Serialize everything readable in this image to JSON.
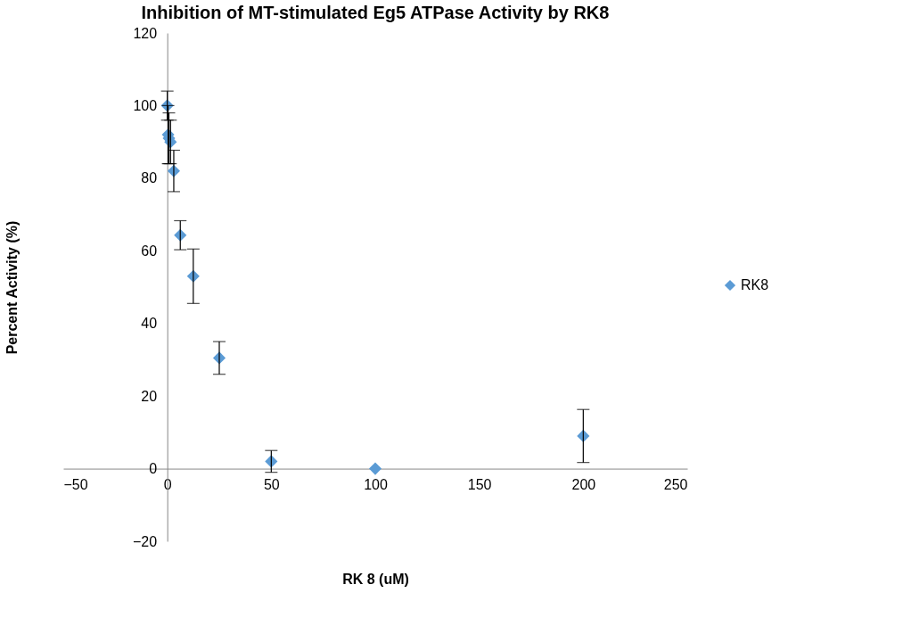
{
  "chart_data": {
    "type": "scatter",
    "title": "Inhibition of MT-stimulated Eg5 ATPase Activity by RK8",
    "xlabel": "RK 8 (uM)",
    "ylabel": "Percent Activity (%)",
    "x": [
      0,
      0.39,
      0.78,
      1.56,
      3.125,
      6.25,
      12.5,
      25,
      50,
      100,
      200
    ],
    "series": [
      {
        "name": "RK8",
        "color": "#5b9bd5",
        "values": [
          100,
          92,
          91,
          90,
          82,
          64.3,
          53,
          30.5,
          2,
          0,
          9
        ],
        "errors": [
          4,
          8,
          7,
          6,
          5.7,
          4,
          7.5,
          4.5,
          3,
          null,
          7.3
        ]
      }
    ],
    "xlim": [
      -50,
      250
    ],
    "xticks": [
      -50,
      0,
      50,
      100,
      150,
      200,
      250
    ],
    "ylim": [
      -20,
      120
    ],
    "yticks": [
      -20,
      0,
      20,
      40,
      60,
      80,
      100,
      120
    ],
    "marker": "diamond",
    "legend": "right",
    "grid": false
  }
}
